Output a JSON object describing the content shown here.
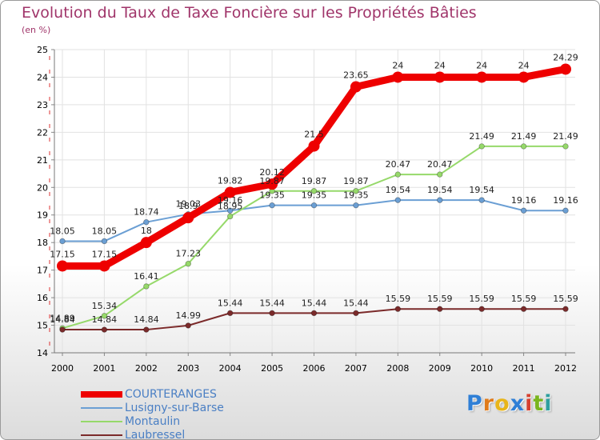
{
  "title": "Evolution du Taux de Taxe Foncière sur les Propriétés Bâties",
  "unit": "(en %)",
  "logo": {
    "letters": [
      "P",
      "r",
      "o",
      "x",
      "i",
      "t",
      "i"
    ],
    "colors": [
      "#2f7fd6",
      "#e07b1a",
      "#e8b51a",
      "#2f7fd6",
      "#d6402f",
      "#7ab51d",
      "#2f9f9f"
    ]
  },
  "chart_data": {
    "type": "line",
    "title": "Evolution du Taux de Taxe Foncière sur les Propriétés Bâties",
    "ylabel": "(en %)",
    "xlabel": "",
    "x": [
      "2000",
      "2001",
      "2002",
      "2003",
      "2004",
      "2005",
      "2006",
      "2007",
      "2008",
      "2009",
      "2010",
      "2011",
      "2012"
    ],
    "yticks": [
      "14",
      "15",
      "16",
      "17",
      "18",
      "19",
      "20",
      "21",
      "22",
      "23",
      "24",
      "25"
    ],
    "ylim": [
      14,
      25
    ],
    "grid": true,
    "series": [
      {
        "name": "COURTERANGES",
        "color": "#ee0000",
        "emphasis": true,
        "values": [
          17.15,
          17.15,
          18,
          18.9,
          19.82,
          20.12,
          21.5,
          23.65,
          24,
          24,
          24,
          24,
          24.29
        ],
        "labels": [
          "17.15",
          "17.15",
          "18",
          "18.9",
          "19.82",
          "20.12",
          "21.5",
          "23.65",
          "24",
          "24",
          "24",
          "24",
          "24.29"
        ]
      },
      {
        "name": "Lusigny-sur-Barse",
        "color": "#6b9fd4",
        "emphasis": false,
        "values": [
          18.05,
          18.05,
          18.74,
          19.03,
          19.16,
          19.35,
          19.35,
          19.35,
          19.54,
          19.54,
          19.54,
          19.16,
          19.16
        ],
        "labels": [
          "18.05",
          "18.05",
          "18.74",
          "19.03",
          "19.16",
          "19.35",
          "19.35",
          "19.35",
          "19.54",
          "19.54",
          "19.54",
          "19.16",
          "19.16"
        ]
      },
      {
        "name": "Montaulin",
        "color": "#96d96a",
        "emphasis": false,
        "values": [
          14.89,
          15.34,
          16.41,
          17.23,
          18.95,
          19.87,
          19.87,
          19.87,
          20.47,
          20.47,
          21.49,
          21.49,
          21.49
        ],
        "labels": [
          "14.89",
          "15.34",
          "16.41",
          "17.23",
          "18.95",
          "19.87",
          "19.87",
          "19.87",
          "20.47",
          "20.47",
          "21.49",
          "21.49",
          "21.49"
        ]
      },
      {
        "name": "Laubressel",
        "color": "#7b2a2a",
        "emphasis": false,
        "values": [
          14.84,
          14.84,
          14.84,
          14.99,
          15.44,
          15.44,
          15.44,
          15.44,
          15.59,
          15.59,
          15.59,
          15.59,
          15.59
        ],
        "labels": [
          "14.84",
          "14.84",
          "14.84",
          "14.99",
          "15.44",
          "15.44",
          "15.44",
          "15.44",
          "15.59",
          "15.59",
          "15.59",
          "15.59",
          "15.59"
        ]
      }
    ]
  }
}
